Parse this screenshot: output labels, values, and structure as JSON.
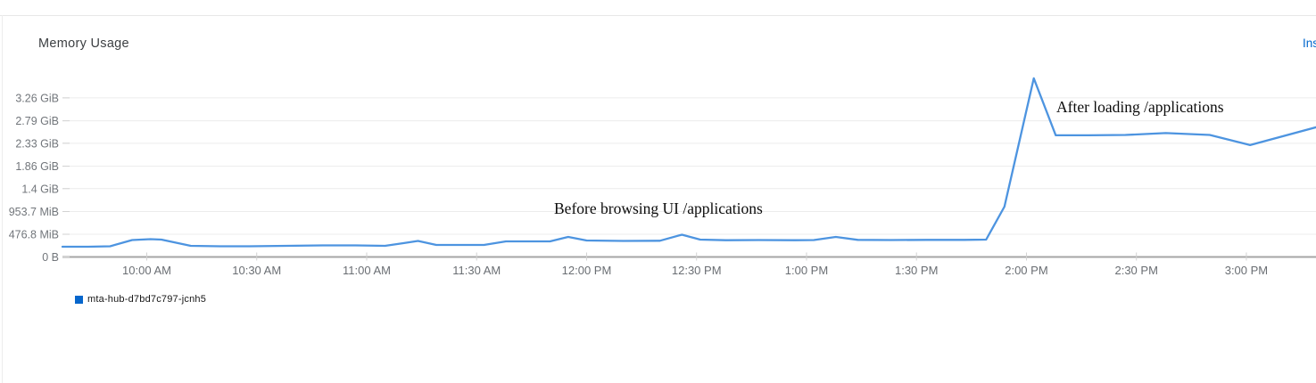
{
  "card": {
    "title": "Memory Usage",
    "inspect_link_label": "Ins",
    "link_color": "#0066cc"
  },
  "legend": {
    "items": [
      {
        "label": "mta-hub-d7bd7c797-jcnh5",
        "color": "#0666cc",
        "swatch_icon": "legend-square-icon"
      }
    ]
  },
  "chart_data": {
    "type": "line",
    "title": "Memory Usage",
    "xlabel": "",
    "ylabel": "",
    "grid": true,
    "legend_position": "bottom-left",
    "line_color": "#4d94e0",
    "annotations": [
      {
        "text": "Before browsing UI /applications",
        "t": 717,
        "v_mib": 700
      },
      {
        "text": "After loading /applications",
        "t": 855,
        "v_mib": 3000
      }
    ],
    "x_axis": {
      "unit": "time-of-day",
      "range_minutes": [
        577,
        919
      ],
      "ticks": [
        {
          "t": 600,
          "label": "10:00 AM"
        },
        {
          "t": 630,
          "label": "10:30 AM"
        },
        {
          "t": 660,
          "label": "11:00 AM"
        },
        {
          "t": 690,
          "label": "11:30 AM"
        },
        {
          "t": 720,
          "label": "12:00 PM"
        },
        {
          "t": 750,
          "label": "12:30 PM"
        },
        {
          "t": 780,
          "label": "1:00 PM"
        },
        {
          "t": 810,
          "label": "1:30 PM"
        },
        {
          "t": 840,
          "label": "2:00 PM"
        },
        {
          "t": 870,
          "label": "2:30 PM"
        },
        {
          "t": 900,
          "label": "3:00 PM"
        }
      ]
    },
    "y_axis": {
      "unit": "MiB",
      "range": [
        0,
        3990
      ],
      "ticks": [
        {
          "v": 0,
          "label": "0 B"
        },
        {
          "v": 476.8,
          "label": "476.8 MiB"
        },
        {
          "v": 953.7,
          "label": "953.7 MiB"
        },
        {
          "v": 1433.6,
          "label": "1.4 GiB"
        },
        {
          "v": 1904.6,
          "label": "1.86 GiB"
        },
        {
          "v": 2385.9,
          "label": "2.33 GiB"
        },
        {
          "v": 2857.0,
          "label": "2.79 GiB"
        },
        {
          "v": 3338.2,
          "label": "3.26 GiB"
        }
      ]
    },
    "series": [
      {
        "name": "mta-hub-d7bd7c797-jcnh5",
        "color": "#4d94e0",
        "points_t_mib": [
          [
            577,
            215
          ],
          [
            584,
            215
          ],
          [
            590,
            224
          ],
          [
            596,
            355
          ],
          [
            601,
            374
          ],
          [
            604,
            365
          ],
          [
            612,
            234
          ],
          [
            620,
            224
          ],
          [
            628,
            224
          ],
          [
            638,
            234
          ],
          [
            648,
            243
          ],
          [
            657,
            243
          ],
          [
            665,
            234
          ],
          [
            670,
            290
          ],
          [
            674,
            337
          ],
          [
            679,
            252
          ],
          [
            687,
            252
          ],
          [
            692,
            252
          ],
          [
            698,
            327
          ],
          [
            706,
            327
          ],
          [
            710,
            327
          ],
          [
            715,
            421
          ],
          [
            720,
            346
          ],
          [
            730,
            337
          ],
          [
            740,
            340
          ],
          [
            746,
            467
          ],
          [
            751,
            365
          ],
          [
            758,
            352
          ],
          [
            767,
            355
          ],
          [
            777,
            352
          ],
          [
            782,
            355
          ],
          [
            788,
            421
          ],
          [
            794,
            359
          ],
          [
            803,
            355
          ],
          [
            813,
            359
          ],
          [
            823,
            359
          ],
          [
            829,
            365
          ],
          [
            834,
            1056
          ],
          [
            842,
            3749
          ],
          [
            848,
            2552
          ],
          [
            857,
            2552
          ],
          [
            867,
            2561
          ],
          [
            878,
            2599
          ],
          [
            890,
            2561
          ],
          [
            901,
            2347
          ],
          [
            919,
            2721
          ]
        ]
      }
    ],
    "style": {
      "gridline_color": "#ececec",
      "axis_line_color": "#a6a6a6",
      "tick_stub_color": "#d2d2d2"
    }
  }
}
